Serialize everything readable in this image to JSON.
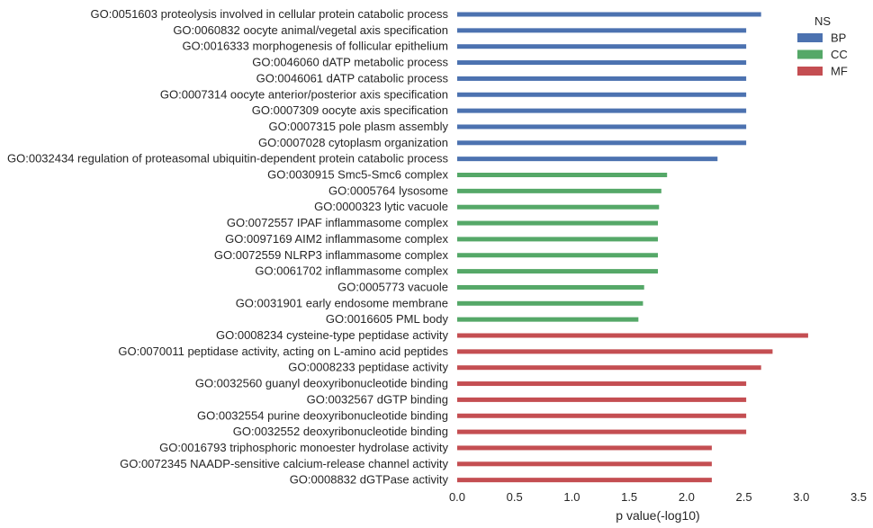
{
  "chart_data": {
    "type": "bar",
    "orientation": "horizontal",
    "xlabel": "p value(-log10)",
    "xlim": [
      0,
      3.5
    ],
    "xticks": [
      "0.0",
      "0.5",
      "1.0",
      "1.5",
      "2.0",
      "2.5",
      "3.0",
      "3.5"
    ],
    "grid": false,
    "legend": {
      "title": "NS",
      "placement": "top-right",
      "items": [
        {
          "label": "BP",
          "color": "#4C72B0"
        },
        {
          "label": "CC",
          "color": "#55A868"
        },
        {
          "label": "MF",
          "color": "#C44E52"
        }
      ]
    },
    "bars": [
      {
        "label": "GO:0051603 proteolysis involved in cellular protein catabolic process",
        "value": 2.65,
        "ns": "BP"
      },
      {
        "label": "GO:0060832 oocyte animal/vegetal axis specification",
        "value": 2.52,
        "ns": "BP"
      },
      {
        "label": "GO:0016333 morphogenesis of follicular epithelium",
        "value": 2.52,
        "ns": "BP"
      },
      {
        "label": "GO:0046060 dATP metabolic process",
        "value": 2.52,
        "ns": "BP"
      },
      {
        "label": "GO:0046061 dATP catabolic process",
        "value": 2.52,
        "ns": "BP"
      },
      {
        "label": "GO:0007314 oocyte anterior/posterior axis specification",
        "value": 2.52,
        "ns": "BP"
      },
      {
        "label": "GO:0007309 oocyte axis specification",
        "value": 2.52,
        "ns": "BP"
      },
      {
        "label": "GO:0007315 pole plasm assembly",
        "value": 2.52,
        "ns": "BP"
      },
      {
        "label": "GO:0007028 cytoplasm organization",
        "value": 2.52,
        "ns": "BP"
      },
      {
        "label": "GO:0032434 regulation of proteasomal ubiquitin-dependent protein catabolic process",
        "value": 2.27,
        "ns": "BP"
      },
      {
        "label": "GO:0030915 Smc5-Smc6 complex",
        "value": 1.83,
        "ns": "CC"
      },
      {
        "label": "GO:0005764 lysosome",
        "value": 1.78,
        "ns": "CC"
      },
      {
        "label": "GO:0000323 lytic vacuole",
        "value": 1.76,
        "ns": "CC"
      },
      {
        "label": "GO:0072557 IPAF inflammasome complex",
        "value": 1.75,
        "ns": "CC"
      },
      {
        "label": "GO:0097169 AIM2 inflammasome complex",
        "value": 1.75,
        "ns": "CC"
      },
      {
        "label": "GO:0072559 NLRP3 inflammasome complex",
        "value": 1.75,
        "ns": "CC"
      },
      {
        "label": "GO:0061702 inflammasome complex",
        "value": 1.75,
        "ns": "CC"
      },
      {
        "label": "GO:0005773 vacuole",
        "value": 1.63,
        "ns": "CC"
      },
      {
        "label": "GO:0031901 early endosome membrane",
        "value": 1.62,
        "ns": "CC"
      },
      {
        "label": "GO:0016605 PML body",
        "value": 1.58,
        "ns": "CC"
      },
      {
        "label": "GO:0008234 cysteine-type peptidase activity",
        "value": 3.06,
        "ns": "MF"
      },
      {
        "label": "GO:0070011 peptidase activity, acting on L-amino acid peptides",
        "value": 2.75,
        "ns": "MF"
      },
      {
        "label": "GO:0008233 peptidase activity",
        "value": 2.65,
        "ns": "MF"
      },
      {
        "label": "GO:0032560 guanyl deoxyribonucleotide binding",
        "value": 2.52,
        "ns": "MF"
      },
      {
        "label": "GO:0032567 dGTP binding",
        "value": 2.52,
        "ns": "MF"
      },
      {
        "label": "GO:0032554 purine deoxyribonucleotide binding",
        "value": 2.52,
        "ns": "MF"
      },
      {
        "label": "GO:0032552 deoxyribonucleotide binding",
        "value": 2.52,
        "ns": "MF"
      },
      {
        "label": "GO:0016793 triphosphoric monoester hydrolase activity",
        "value": 2.22,
        "ns": "MF"
      },
      {
        "label": "GO:0072345 NAADP-sensitive calcium-release channel activity",
        "value": 2.22,
        "ns": "MF"
      },
      {
        "label": "GO:0008832 dGTPase activity",
        "value": 2.22,
        "ns": "MF"
      }
    ]
  }
}
